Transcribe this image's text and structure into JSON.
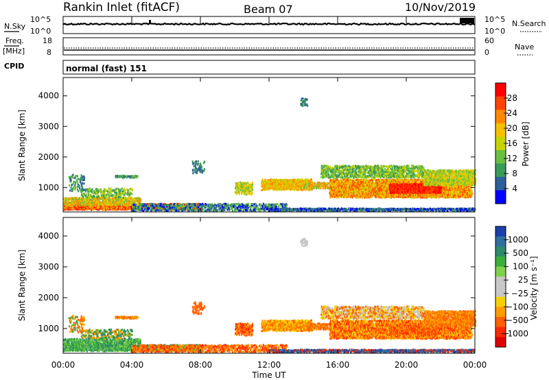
{
  "header": {
    "station": "Rankin Inlet (fitACF)",
    "beam": "Beam 07",
    "date": "10/Nov/2019"
  },
  "panels": {
    "nsky": {
      "label": "N.Sky",
      "tick_top": "10^5",
      "tick_bottom": "10^0"
    },
    "nsearch": {
      "label": "N.Search",
      "tick_top": "10^5",
      "tick_bottom": "10^0"
    },
    "freq": {
      "label_line1": "Freq.",
      "label_line2": "[MHz]",
      "tick_top": "18",
      "tick_bottom": "8"
    },
    "nave": {
      "label": "Nave",
      "tick_top": "60",
      "tick_bottom": "0"
    },
    "cpid": {
      "label": "CPID",
      "text": "normal (fast) 151"
    }
  },
  "colorbars": {
    "power": {
      "label": "Power [dB]",
      "ticks": [
        "28",
        "24",
        "20",
        "16",
        "12",
        "8",
        "4"
      ],
      "colors": [
        "#ff0000",
        "#ff4400",
        "#ff8800",
        "#f5c000",
        "#c8d400",
        "#6abf40",
        "#3a9a5a",
        "#2e5f9a",
        "#0000ff"
      ]
    },
    "velocity": {
      "label": "Velocity [m s⁻¹]",
      "ticks": [
        "1000",
        "500",
        "100",
        "25",
        "−25",
        "−100",
        "−500",
        "−1000"
      ],
      "colors": [
        "#1a3fa8",
        "#2f6fa0",
        "#2e8a6a",
        "#3cae3c",
        "#7fd04a",
        "#c8c8c8",
        "#c8c8c8",
        "#f5d000",
        "#ff9c00",
        "#ff6000",
        "#ff2a00",
        "#e00000"
      ]
    }
  },
  "chart_data": [
    {
      "type": "heatmap",
      "name": "power",
      "ylabel": "Slant Range [km]",
      "xlim": [
        "00:00",
        "00:00"
      ],
      "ylim": [
        200,
        4600
      ],
      "yticks": [
        1000,
        2000,
        3000,
        4000
      ],
      "xticks": [
        "00:00",
        "04:00",
        "08:00",
        "12:00",
        "16:00",
        "20:00",
        "00:00"
      ],
      "colorbar": "power"
    },
    {
      "type": "heatmap",
      "name": "velocity",
      "ylabel": "Slant Range [km]",
      "xlabel": "Time UT",
      "xlim": [
        "00:00",
        "00:00"
      ],
      "ylim": [
        200,
        4600
      ],
      "yticks": [
        1000,
        2000,
        3000,
        4000
      ],
      "xticks": [
        "00:00",
        "04:00",
        "08:00",
        "12:00",
        "16:00",
        "20:00",
        "00:00"
      ],
      "colorbar": "velocity"
    }
  ]
}
